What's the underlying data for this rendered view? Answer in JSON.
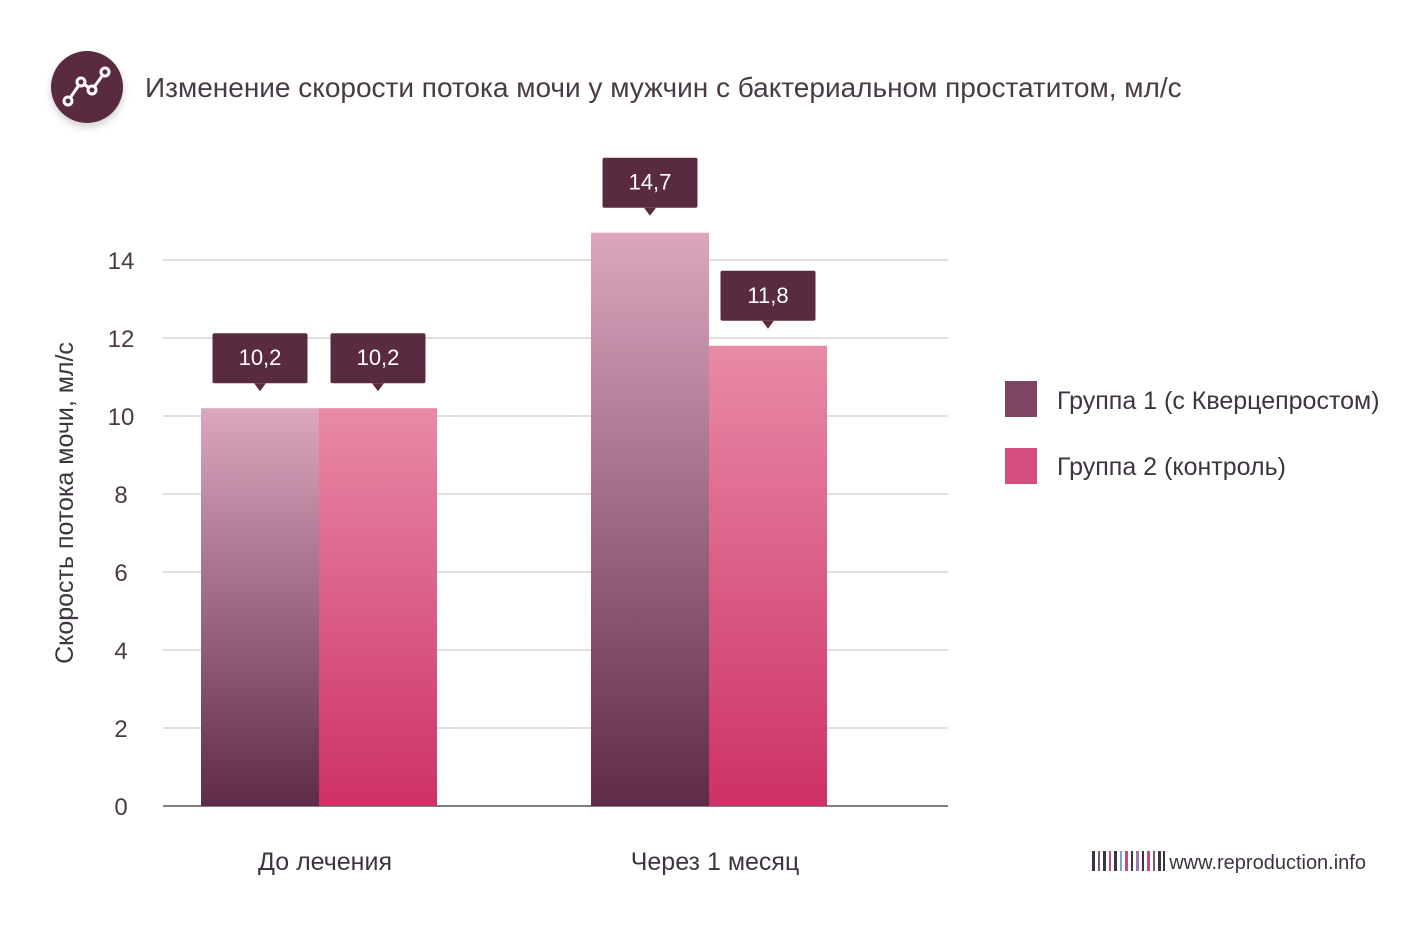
{
  "colors": {
    "series1_top": "#dba6be",
    "series1_bottom": "#5f2c47",
    "series2_top": "#e88aa6",
    "series2_bottom": "#cd3168",
    "label_box": "#5a2a41",
    "grid": "#cccccc",
    "axis_line": "#555555",
    "icon_circle": "#5a2a41"
  },
  "icon": "line-chart-icon",
  "watermark": {
    "text": "www.reproduction.info",
    "icon": "barcode-icon"
  },
  "chart_data": {
    "type": "bar",
    "title": "Изменение скорости потока мочи у мужчин с бактериальном простатитом, мл/с",
    "xlabel": "",
    "ylabel": "Скорость потока мочи, мл/с",
    "ylim": [
      0,
      14
    ],
    "yticks": [
      "0",
      "2",
      "4",
      "6",
      "8",
      "10",
      "12",
      "14"
    ],
    "grid": true,
    "legend_position": "right",
    "categories": [
      "До лечения",
      "Через 1 месяц"
    ],
    "series": [
      {
        "name": "Группа 1 (с Кверцепростом)",
        "values": [
          10.2,
          14.7
        ],
        "labels": [
          "10,2",
          "14,7"
        ]
      },
      {
        "name": "Группа 2 (контроль)",
        "values": [
          10.2,
          11.8
        ],
        "labels": [
          "10,2",
          "11,8"
        ]
      }
    ]
  }
}
